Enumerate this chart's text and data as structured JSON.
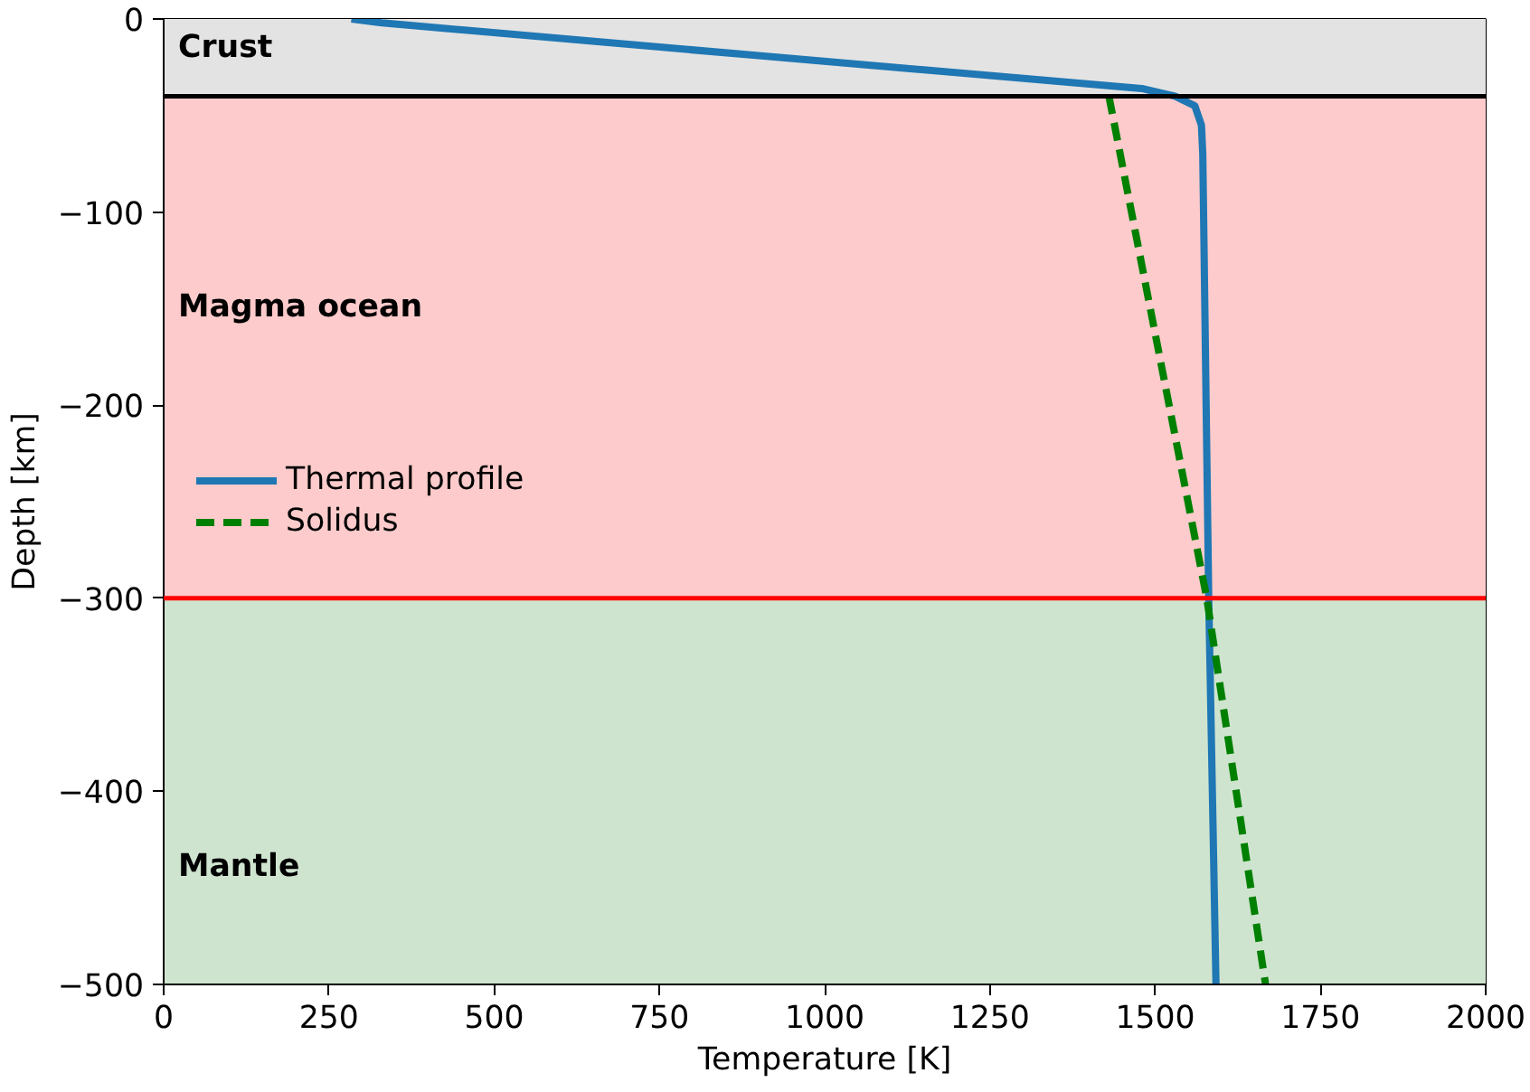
{
  "chart_data": {
    "type": "line",
    "xlabel": "Temperature [K]",
    "ylabel": "Depth [km]",
    "xlim": [
      0,
      2000
    ],
    "ylim": [
      -500,
      0
    ],
    "xticks": [
      0,
      250,
      500,
      750,
      1000,
      1250,
      1500,
      1750,
      2000
    ],
    "yticks": [
      {
        "value": -500,
        "label": "−500"
      },
      {
        "value": -400,
        "label": "−400"
      },
      {
        "value": -300,
        "label": "−300"
      },
      {
        "value": -200,
        "label": "−200"
      },
      {
        "value": -100,
        "label": "−100"
      },
      0
    ],
    "series": [
      {
        "name": "Thermal profile",
        "color": "#1f77b4",
        "line_style": "solid",
        "x": [
          284,
          330,
          900,
          1480,
          1530,
          1560,
          1570,
          1572,
          1581,
          1592
        ],
        "values": [
          0,
          -2,
          -19,
          -36,
          -40,
          -45,
          -55,
          -70,
          -300,
          -500
        ]
      },
      {
        "name": "Solidus",
        "color": "#008000",
        "line_style": "dashed",
        "x": [
          1430,
          1578,
          1667
        ],
        "values": [
          -40,
          -300,
          -500
        ]
      }
    ],
    "bands": [
      {
        "axis": "y",
        "from": -40,
        "to": 0,
        "label": "Crust",
        "color": "#e3e3e3"
      },
      {
        "axis": "y",
        "from": -300,
        "to": -40,
        "label": "Magma ocean",
        "color": "#fdcbcb"
      },
      {
        "axis": "y",
        "from": -500,
        "to": -300,
        "label": "Mantle",
        "color": "#cfe4cf"
      }
    ],
    "ref_lines": [
      {
        "axis": "y",
        "value": -40,
        "color": "#000000"
      },
      {
        "axis": "y",
        "value": -300,
        "color": "#ff0000"
      }
    ],
    "legend": "left"
  }
}
